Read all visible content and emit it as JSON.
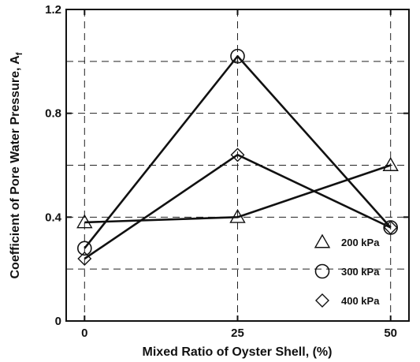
{
  "chart_data": {
    "type": "line",
    "xlabel": "Mixed Ratio of Oyster Shell, (%)",
    "ylabel": "Coefficient of Pore Water Pressure, A",
    "ylabel_subscript": "f",
    "x": [
      0,
      25,
      50
    ],
    "x_ticks": [
      "0",
      "25",
      "50"
    ],
    "y_ticks": [
      "0",
      "0.4",
      "0.8",
      "1.2"
    ],
    "xlim": [
      -3,
      53
    ],
    "ylim": [
      0,
      1.2
    ],
    "grid": true,
    "legend_position": "lower-right",
    "series": [
      {
        "name": "200 kPa",
        "marker": "triangle",
        "values": [
          0.38,
          0.4,
          0.6
        ]
      },
      {
        "name": "300 kPa",
        "marker": "circle",
        "values": [
          0.28,
          1.02,
          0.36
        ]
      },
      {
        "name": "400 kPa",
        "marker": "diamond",
        "values": [
          0.24,
          0.64,
          0.36
        ]
      }
    ]
  }
}
